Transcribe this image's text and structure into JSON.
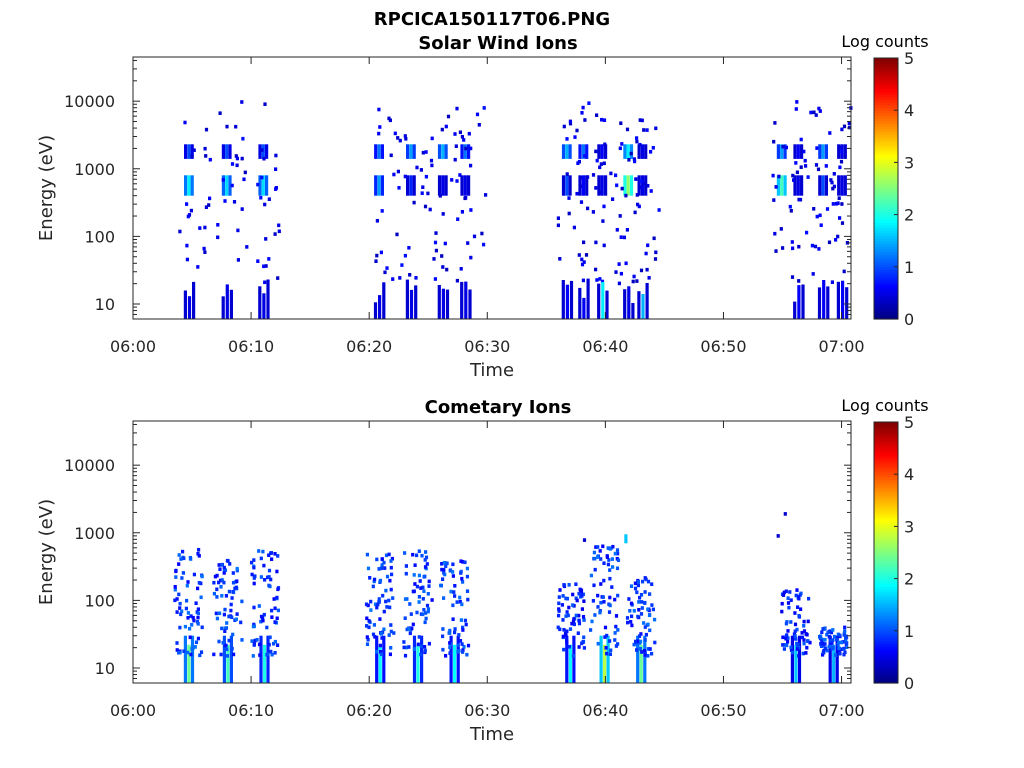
{
  "figure": {
    "filename": "RPCICA150117T06.PNG"
  },
  "chart_data": [
    {
      "type": "heatmap",
      "title": "Solar Wind Ions",
      "xlabel": "Time",
      "ylabel": "Energy (eV)",
      "x_ticks": [
        "06:00",
        "06:10",
        "06:20",
        "06:30",
        "06:40",
        "06:50",
        "07:00"
      ],
      "y_ticks": [
        "10",
        "100",
        "1000",
        "10000"
      ],
      "y_scale": "log",
      "ylim": [
        6,
        45000
      ],
      "xlim_minutes": [
        0,
        60.8
      ],
      "colorbar": {
        "label": "Log counts",
        "range": [
          0,
          5
        ],
        "ticks": [
          "0",
          "1",
          "2",
          "3",
          "4",
          "5"
        ],
        "colormap": "jet"
      },
      "bursts": [
        {
          "t": 4.6,
          "hi_count": 1.0,
          "mid_count": 1.8,
          "mid_e": [
            400,
            800
          ],
          "hi_e": [
            1400,
            2300
          ],
          "lo": 0.5
        },
        {
          "t": 7.8,
          "hi_count": 1.0,
          "mid_count": 1.7,
          "mid_e": [
            400,
            800
          ],
          "hi_e": [
            1400,
            2300
          ],
          "lo": 0.5
        },
        {
          "t": 10.9,
          "hi_count": 1.0,
          "mid_count": 1.7,
          "mid_e": [
            400,
            800
          ],
          "hi_e": [
            1400,
            2300
          ],
          "lo": 0.5
        },
        {
          "t": 20.7,
          "hi_count": 1.2,
          "mid_count": 1.4,
          "mid_e": [
            400,
            800
          ],
          "hi_e": [
            1400,
            2300
          ],
          "lo": 0.5
        },
        {
          "t": 23.4,
          "hi_count": 1.4,
          "mid_count": 0.8,
          "mid_e": [
            400,
            800
          ],
          "hi_e": [
            1400,
            2300
          ],
          "lo": 0.5
        },
        {
          "t": 26.1,
          "hi_count": 1.5,
          "mid_count": 0.5,
          "mid_e": [
            400,
            800
          ],
          "hi_e": [
            1400,
            2300
          ],
          "lo": 0.5
        },
        {
          "t": 28.0,
          "hi_count": 1.2,
          "mid_count": 0.5,
          "mid_e": [
            400,
            800
          ],
          "hi_e": [
            1400,
            2300
          ],
          "lo": 0.5
        },
        {
          "t": 36.6,
          "hi_count": 1.5,
          "mid_count": 1.0,
          "mid_e": [
            400,
            800
          ],
          "hi_e": [
            1400,
            2300
          ],
          "lo": 0.6
        },
        {
          "t": 38.0,
          "hi_count": 1.2,
          "mid_count": 0.6,
          "mid_e": [
            400,
            800
          ],
          "hi_e": [
            1400,
            2300
          ],
          "lo": 0.6
        },
        {
          "t": 39.6,
          "hi_count": 0.6,
          "mid_count": 0.5,
          "mid_e": [
            400,
            800
          ],
          "hi_e": [
            1400,
            2300
          ],
          "lo": 1.8
        },
        {
          "t": 41.8,
          "hi_count": 1.8,
          "mid_count": 2.6,
          "mid_e": [
            400,
            800
          ],
          "hi_e": [
            1400,
            2300
          ],
          "lo": 0.5
        },
        {
          "t": 43.0,
          "hi_count": 0.5,
          "mid_count": 0.5,
          "mid_e": [
            400,
            800
          ],
          "hi_e": [
            1400,
            2300
          ],
          "lo": 1.5
        },
        {
          "t": 54.8,
          "hi_count": 1.4,
          "mid_count": 2.2,
          "mid_e": [
            400,
            800
          ],
          "hi_e": [
            1400,
            2300
          ],
          "lo": 0.0
        },
        {
          "t": 56.2,
          "hi_count": 0.6,
          "mid_count": 0.5,
          "mid_e": [
            400,
            800
          ],
          "hi_e": [
            1400,
            2300
          ],
          "lo": 0.6
        },
        {
          "t": 58.3,
          "hi_count": 1.4,
          "mid_count": 1.0,
          "mid_e": [
            400,
            800
          ],
          "hi_e": [
            1400,
            2300
          ],
          "lo": 0.6
        },
        {
          "t": 59.9,
          "hi_count": 0.5,
          "mid_count": 0.5,
          "mid_e": [
            400,
            800
          ],
          "hi_e": [
            1400,
            2300
          ],
          "lo": 0.6
        }
      ]
    },
    {
      "type": "heatmap",
      "title": "Cometary Ions",
      "xlabel": "Time",
      "ylabel": "Energy (eV)",
      "x_ticks": [
        "06:00",
        "06:10",
        "06:20",
        "06:30",
        "06:40",
        "06:50",
        "07:00"
      ],
      "y_ticks": [
        "10",
        "100",
        "1000",
        "10000"
      ],
      "y_scale": "log",
      "ylim": [
        6,
        45000
      ],
      "xlim_minutes": [
        0,
        60.8
      ],
      "colorbar": {
        "label": "Log counts",
        "range": [
          0,
          5
        ],
        "ticks": [
          "0",
          "1",
          "2",
          "3",
          "4",
          "5"
        ],
        "colormap": "jet"
      },
      "bursts": [
        {
          "t": 4.6,
          "low_count": 2.4,
          "band_top": 600,
          "band_count": 0.6
        },
        {
          "t": 7.9,
          "low_count": 2.2,
          "band_top": 400,
          "band_count": 0.6
        },
        {
          "t": 11.0,
          "low_count": 2.0,
          "band_top": 600,
          "band_count": 0.6
        },
        {
          "t": 20.8,
          "low_count": 1.9,
          "band_top": 500,
          "band_count": 0.6
        },
        {
          "t": 24.0,
          "low_count": 2.0,
          "band_top": 550,
          "band_count": 0.6
        },
        {
          "t": 27.1,
          "low_count": 1.9,
          "band_top": 400,
          "band_count": 0.6
        },
        {
          "t": 36.9,
          "low_count": 1.9,
          "band_top": 180,
          "band_count": 0.5
        },
        {
          "t": 39.8,
          "low_count": 2.8,
          "band_top": 700,
          "band_count": 0.6
        },
        {
          "t": 42.9,
          "low_count": 2.4,
          "band_top": 220,
          "band_count": 0.6
        },
        {
          "t": 56.0,
          "low_count": 1.6,
          "band_top": 150,
          "band_count": 0.5
        },
        {
          "t": 59.2,
          "low_count": 1.5,
          "band_top": 40,
          "band_count": 0.6
        }
      ]
    }
  ]
}
